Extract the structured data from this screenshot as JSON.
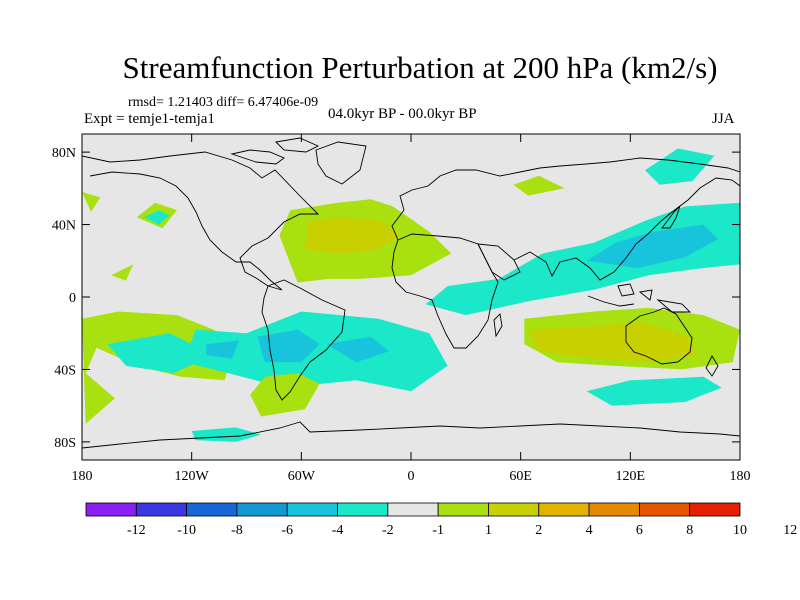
{
  "chart_data": {
    "type": "contour-map",
    "title": "Streamfunction Perturbation at 200 hPa (km2/s)",
    "subtitle_stats": "rmsd= 1.21403 diff= 6.47406e-09",
    "experiment": "Expt = temje1-temja1",
    "period": "04.0kyr BP - 00.0kyr BP",
    "season": "JJA",
    "x_ticks": [
      {
        "lon": -180,
        "label": "180"
      },
      {
        "lon": -120,
        "label": "120W"
      },
      {
        "lon": -60,
        "label": "60W"
      },
      {
        "lon": 0,
        "label": "0"
      },
      {
        "lon": 60,
        "label": "60E"
      },
      {
        "lon": 120,
        "label": "120E"
      },
      {
        "lon": 180,
        "label": "180"
      }
    ],
    "y_ticks": [
      {
        "lat": 80,
        "label": "80N"
      },
      {
        "lat": 40,
        "label": "40N"
      },
      {
        "lat": 0,
        "label": "0"
      },
      {
        "lat": -40,
        "label": "40S"
      },
      {
        "lat": -80,
        "label": "80S"
      }
    ],
    "xlim": [
      -180,
      180
    ],
    "ylim": [
      -90,
      90
    ],
    "colorbar": {
      "colors": [
        "#8c1ff2",
        "#3a37e3",
        "#1766d8",
        "#1299d2",
        "#18c4dc",
        "#1ae8c8",
        "#e6e6e6",
        "#a8e010",
        "#c8d000",
        "#e2b300",
        "#e58a00",
        "#e65500",
        "#e61f00"
      ],
      "labels": [
        "-12",
        "-10",
        "-8",
        "-6",
        "-4",
        "-2",
        "-1",
        "1",
        "2",
        "4",
        "6",
        "8",
        "10",
        "12"
      ]
    },
    "regions": [
      {
        "name": "north-atlantic-positive",
        "level": 2,
        "points": [
          [
            -62,
            8
          ],
          [
            -72,
            34
          ],
          [
            -66,
            48
          ],
          [
            -40,
            52
          ],
          [
            -22,
            54
          ],
          [
            -10,
            50
          ],
          [
            10,
            36
          ],
          [
            22,
            24
          ],
          [
            0,
            12
          ],
          [
            -28,
            10
          ],
          [
            -45,
            10
          ]
        ]
      },
      {
        "name": "north-atlantic-core",
        "level": 4,
        "points": [
          [
            -58,
            26
          ],
          [
            -56,
            42
          ],
          [
            -38,
            44
          ],
          [
            -16,
            42
          ],
          [
            -6,
            34
          ],
          [
            -18,
            26
          ],
          [
            -40,
            24
          ]
        ]
      },
      {
        "name": "pacific-nw-ring",
        "level": 2,
        "points": [
          [
            -150,
            44
          ],
          [
            -140,
            52
          ],
          [
            -128,
            48
          ],
          [
            -136,
            38
          ]
        ]
      },
      {
        "name": "pacific-nw-core",
        "level": -2,
        "points": [
          [
            -146,
            44
          ],
          [
            -138,
            48
          ],
          [
            -132,
            45
          ],
          [
            -138,
            40
          ]
        ]
      },
      {
        "name": "north-pacific-east",
        "level": 2,
        "points": [
          [
            -175,
            47
          ],
          [
            -170,
            55
          ],
          [
            -180,
            58
          ]
        ]
      },
      {
        "name": "subtropical-pacific",
        "level": 2,
        "points": [
          [
            -164,
            12
          ],
          [
            -152,
            18
          ],
          [
            -156,
            9
          ]
        ]
      },
      {
        "name": "south-pacific",
        "level": 2,
        "points": [
          [
            -180,
            -12
          ],
          [
            -160,
            -8
          ],
          [
            -128,
            -10
          ],
          [
            -108,
            -18
          ],
          [
            -96,
            -26
          ],
          [
            -102,
            -46
          ],
          [
            -126,
            -44
          ],
          [
            -150,
            -38
          ],
          [
            -172,
            -28
          ],
          [
            -178,
            -42
          ],
          [
            -162,
            -56
          ],
          [
            -178,
            -70
          ]
        ]
      },
      {
        "name": "south-pacific-inner",
        "level": -1,
        "points": [
          [
            -166,
            -26
          ],
          [
            -132,
            -20
          ],
          [
            -108,
            -32
          ],
          [
            -130,
            -42
          ],
          [
            -156,
            -38
          ]
        ]
      },
      {
        "name": "south-atlantic-band",
        "level": -2,
        "points": [
          [
            -118,
            -18
          ],
          [
            -90,
            -20
          ],
          [
            -60,
            -8
          ],
          [
            -18,
            -12
          ],
          [
            10,
            -20
          ],
          [
            20,
            -38
          ],
          [
            0,
            -52
          ],
          [
            -30,
            -46
          ],
          [
            -70,
            -50
          ],
          [
            -100,
            -42
          ],
          [
            -124,
            -36
          ]
        ]
      },
      {
        "name": "south-atlantic-core",
        "level": -4,
        "points": [
          [
            -84,
            -22
          ],
          [
            -62,
            -18
          ],
          [
            -50,
            -26
          ],
          [
            -60,
            -36
          ],
          [
            -80,
            -36
          ]
        ]
      },
      {
        "name": "south-atlantic-east",
        "level": -4,
        "points": [
          [
            -46,
            -26
          ],
          [
            -22,
            -22
          ],
          [
            -12,
            -30
          ],
          [
            -30,
            -36
          ]
        ]
      },
      {
        "name": "pacific-south-small",
        "level": -4,
        "points": [
          [
            -112,
            -26
          ],
          [
            -94,
            -24
          ],
          [
            -98,
            -34
          ],
          [
            -112,
            -32
          ]
        ]
      },
      {
        "name": "eurasia-asia-band",
        "level": -2,
        "points": [
          [
            8,
            -4
          ],
          [
            20,
            6
          ],
          [
            48,
            10
          ],
          [
            72,
            24
          ],
          [
            100,
            30
          ],
          [
            128,
            42
          ],
          [
            150,
            50
          ],
          [
            180,
            52
          ],
          [
            180,
            18
          ],
          [
            160,
            16
          ],
          [
            130,
            12
          ],
          [
            100,
            4
          ],
          [
            66,
            -2
          ],
          [
            30,
            -10
          ]
        ]
      },
      {
        "name": "west-pacific-core",
        "level": -4,
        "points": [
          [
            96,
            20
          ],
          [
            112,
            30
          ],
          [
            132,
            36
          ],
          [
            160,
            40
          ],
          [
            168,
            32
          ],
          [
            150,
            22
          ],
          [
            124,
            16
          ]
        ]
      },
      {
        "name": "siberia-positive",
        "level": 2,
        "points": [
          [
            56,
            62
          ],
          [
            70,
            67
          ],
          [
            84,
            60
          ],
          [
            64,
            56
          ]
        ]
      },
      {
        "name": "arctic-pacific",
        "level": -2,
        "points": [
          [
            128,
            70
          ],
          [
            146,
            82
          ],
          [
            166,
            78
          ],
          [
            154,
            64
          ],
          [
            136,
            62
          ]
        ]
      },
      {
        "name": "indian-ocean-south",
        "level": 2,
        "points": [
          [
            62,
            -12
          ],
          [
            100,
            -8
          ],
          [
            130,
            -6
          ],
          [
            160,
            -10
          ],
          [
            180,
            -18
          ],
          [
            176,
            -36
          ],
          [
            148,
            -40
          ],
          [
            110,
            -38
          ],
          [
            80,
            -36
          ],
          [
            62,
            -26
          ]
        ]
      },
      {
        "name": "australia-core",
        "level": 4,
        "points": [
          [
            64,
            -18
          ],
          [
            100,
            -16
          ],
          [
            126,
            -14
          ],
          [
            152,
            -22
          ],
          [
            156,
            -32
          ],
          [
            130,
            -36
          ],
          [
            100,
            -34
          ],
          [
            70,
            -30
          ]
        ]
      },
      {
        "name": "southern-indian-band",
        "level": -2,
        "points": [
          [
            96,
            -52
          ],
          [
            120,
            -46
          ],
          [
            160,
            -44
          ],
          [
            170,
            -50
          ],
          [
            150,
            -58
          ],
          [
            110,
            -60
          ]
        ]
      },
      {
        "name": "south-america-south",
        "level": 2,
        "points": [
          [
            -88,
            -54
          ],
          [
            -80,
            -44
          ],
          [
            -62,
            -42
          ],
          [
            -50,
            -48
          ],
          [
            -58,
            -62
          ],
          [
            -82,
            -66
          ]
        ]
      },
      {
        "name": "antarctic-pacific",
        "level": -2,
        "points": [
          [
            -120,
            -74
          ],
          [
            -96,
            -72
          ],
          [
            -82,
            -76
          ],
          [
            -96,
            -80
          ],
          [
            -118,
            -79
          ]
        ]
      }
    ]
  }
}
